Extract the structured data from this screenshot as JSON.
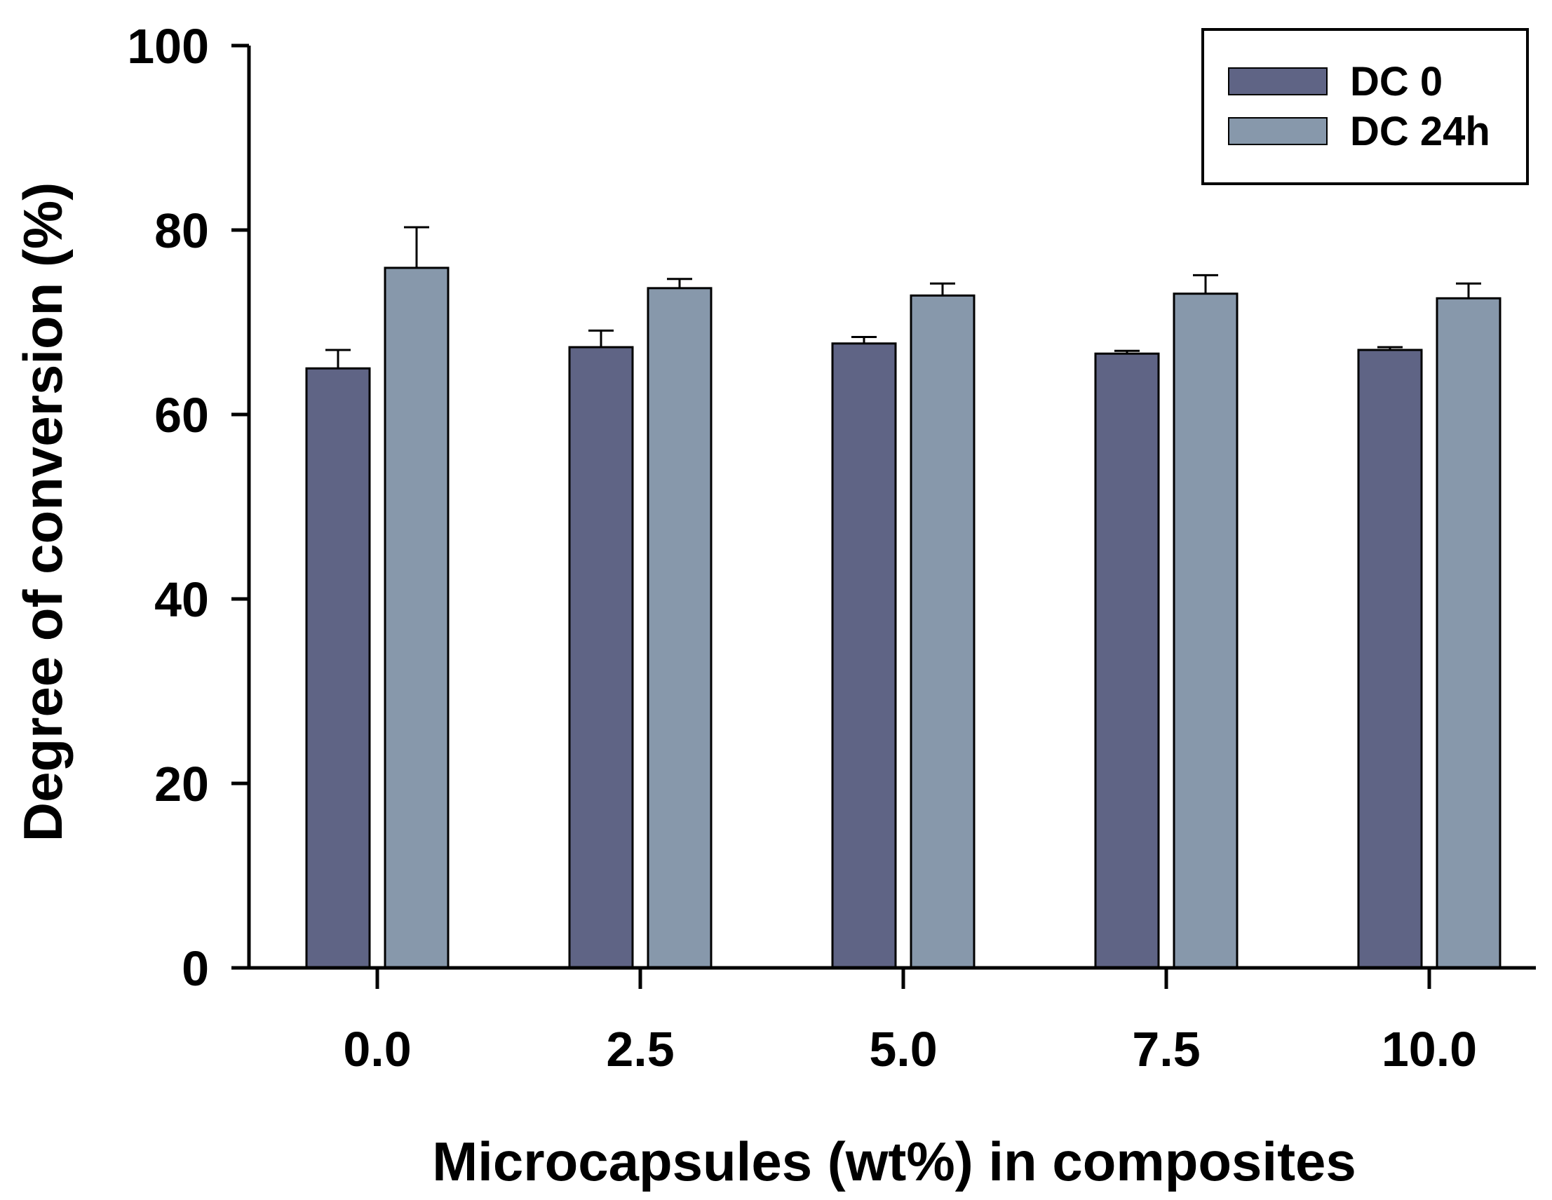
{
  "chart_data": {
    "type": "bar",
    "title": "",
    "xlabel": "Microcapsules (wt%) in composites",
    "ylabel": "Degree of conversion (%)",
    "ylim": [
      0,
      100
    ],
    "yticks": [
      "0",
      "20",
      "40",
      "60",
      "80",
      "100"
    ],
    "categories": [
      "0.0",
      "2.5",
      "5.0",
      "7.5",
      "10.0"
    ],
    "grid": false,
    "legend_position": "top-right",
    "series": [
      {
        "name": "DC 0",
        "color": "#5f6485",
        "values": [
          65.0,
          67.3,
          67.7,
          66.6,
          67.0
        ],
        "errors": [
          2.0,
          1.8,
          0.7,
          0.3,
          0.3
        ]
      },
      {
        "name": "DC 24h",
        "color": "#8798ab",
        "values": [
          75.9,
          73.7,
          72.9,
          73.1,
          72.6
        ],
        "errors": [
          4.4,
          1.0,
          1.3,
          2.0,
          1.6
        ]
      }
    ]
  }
}
